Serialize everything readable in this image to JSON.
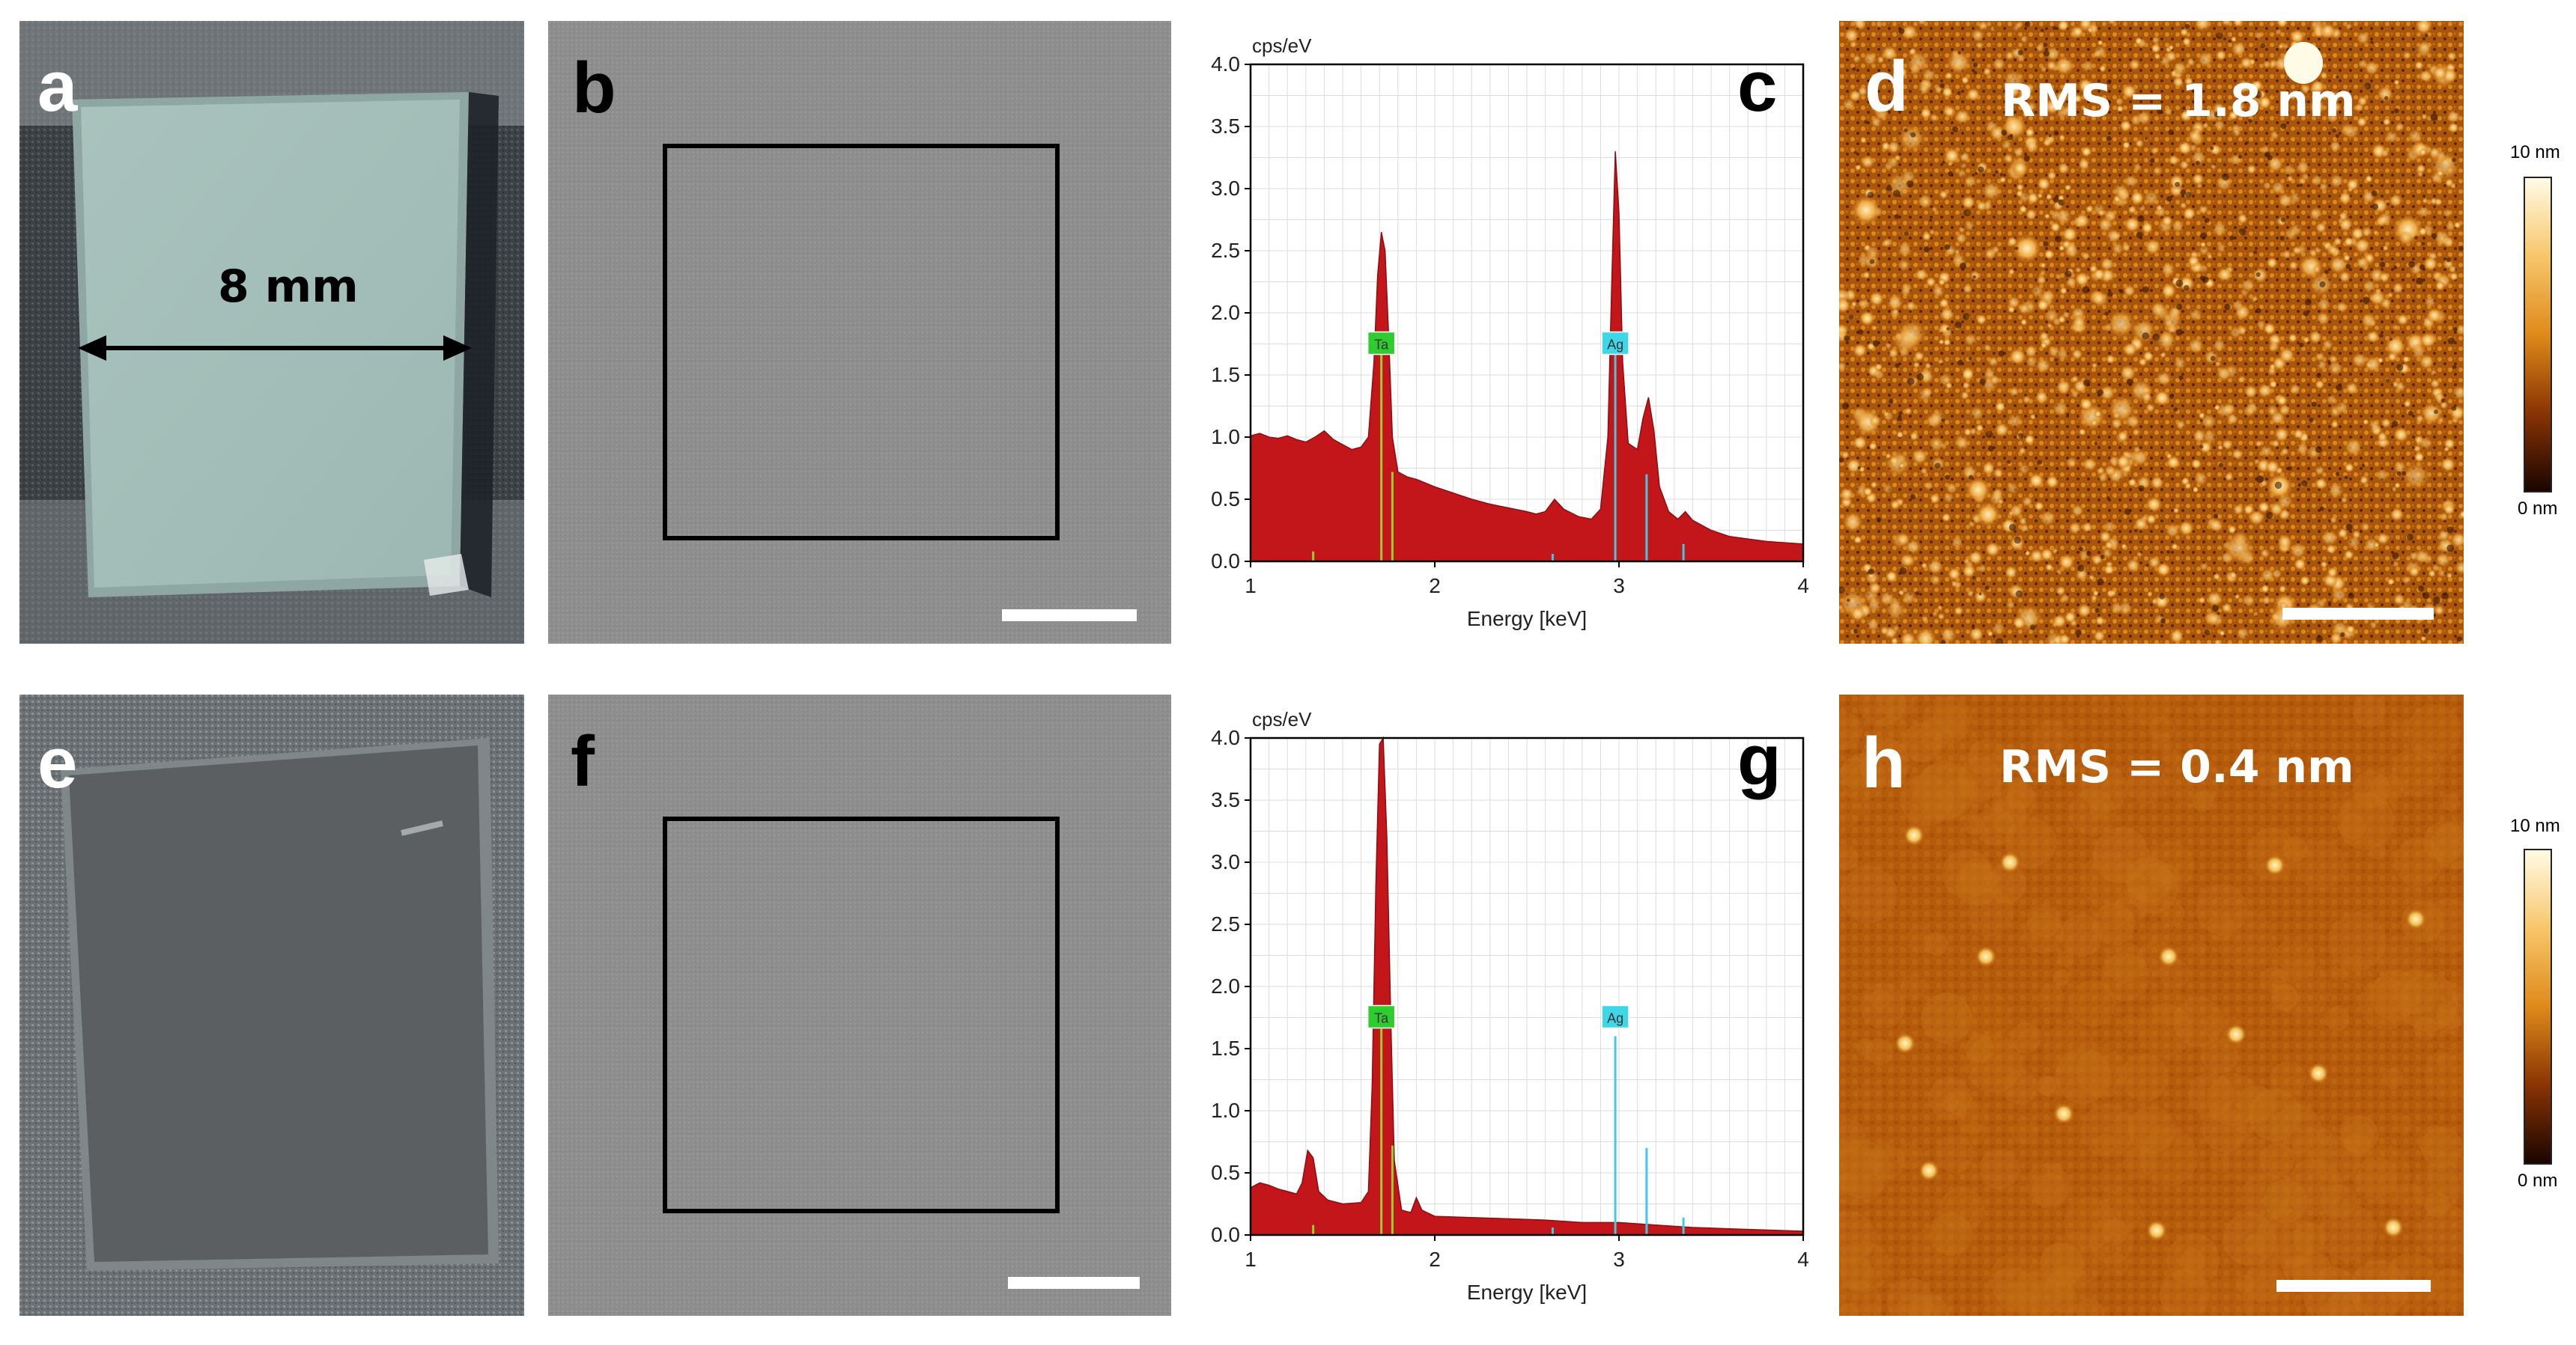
{
  "panels": {
    "a": {
      "label": "a",
      "dimension": "8 mm"
    },
    "b": {
      "label": "b"
    },
    "c": {
      "label": "c"
    },
    "d": {
      "label": "d",
      "rms": "RMS = 1.8 nm"
    },
    "e": {
      "label": "e"
    },
    "f": {
      "label": "f"
    },
    "g": {
      "label": "g"
    },
    "h": {
      "label": "h",
      "rms": "RMS = 0.4 nm"
    }
  },
  "colorbar": {
    "max_label": "10 nm",
    "min_label": "0 nm"
  },
  "colors": {
    "spectrum_fill": "#c2161b",
    "ta_tag": "#2ecc2e",
    "ag_tag": "#3fd6e6",
    "marker_ta": "#9acd32",
    "marker_ag": "#45c8e0"
  },
  "chart_data": [
    {
      "type": "area",
      "panel": "c",
      "ylabel": "cps/eV",
      "xlabel": "Energy [keV]",
      "xlim": [
        1,
        4
      ],
      "ylim": [
        0,
        4
      ],
      "x_ticks": [
        "1",
        "2",
        "3",
        "4"
      ],
      "y_ticks": [
        "0.0",
        "0.5",
        "1.0",
        "1.5",
        "2.0",
        "2.5",
        "3.0",
        "3.5",
        "4.0"
      ],
      "peak_tags": [
        {
          "name": "Ta",
          "x": 1.71,
          "y": 1.75
        },
        {
          "name": "Ag",
          "x": 2.98,
          "y": 1.75
        }
      ],
      "markers": [
        {
          "x": 1.34,
          "h": 0.08,
          "el": "Ta"
        },
        {
          "x": 1.71,
          "h": 1.75,
          "el": "Ta"
        },
        {
          "x": 1.77,
          "h": 0.72,
          "el": "Ta"
        },
        {
          "x": 2.64,
          "h": 0.06,
          "el": "Ag"
        },
        {
          "x": 2.98,
          "h": 1.75,
          "el": "Ag"
        },
        {
          "x": 3.15,
          "h": 0.7,
          "el": "Ag"
        },
        {
          "x": 3.35,
          "h": 0.14,
          "el": "Ag"
        }
      ],
      "spectrum": [
        [
          1.0,
          1.01
        ],
        [
          1.05,
          1.03
        ],
        [
          1.1,
          1.0
        ],
        [
          1.15,
          0.99
        ],
        [
          1.2,
          1.01
        ],
        [
          1.25,
          0.98
        ],
        [
          1.3,
          0.96
        ],
        [
          1.35,
          1.0
        ],
        [
          1.4,
          1.05
        ],
        [
          1.45,
          0.98
        ],
        [
          1.5,
          0.94
        ],
        [
          1.55,
          0.9
        ],
        [
          1.6,
          0.92
        ],
        [
          1.64,
          1.0
        ],
        [
          1.67,
          1.6
        ],
        [
          1.69,
          2.3
        ],
        [
          1.71,
          2.65
        ],
        [
          1.73,
          2.5
        ],
        [
          1.75,
          1.8
        ],
        [
          1.77,
          1.0
        ],
        [
          1.8,
          0.72
        ],
        [
          1.85,
          0.68
        ],
        [
          1.9,
          0.66
        ],
        [
          2.0,
          0.6
        ],
        [
          2.1,
          0.55
        ],
        [
          2.2,
          0.5
        ],
        [
          2.3,
          0.46
        ],
        [
          2.4,
          0.43
        ],
        [
          2.5,
          0.4
        ],
        [
          2.55,
          0.38
        ],
        [
          2.6,
          0.4
        ],
        [
          2.65,
          0.5
        ],
        [
          2.7,
          0.42
        ],
        [
          2.78,
          0.36
        ],
        [
          2.85,
          0.34
        ],
        [
          2.9,
          0.42
        ],
        [
          2.94,
          1.0
        ],
        [
          2.96,
          2.2
        ],
        [
          2.98,
          3.3
        ],
        [
          3.0,
          2.8
        ],
        [
          3.02,
          1.6
        ],
        [
          3.05,
          0.95
        ],
        [
          3.1,
          0.9
        ],
        [
          3.13,
          1.15
        ],
        [
          3.16,
          1.32
        ],
        [
          3.19,
          1.05
        ],
        [
          3.22,
          0.6
        ],
        [
          3.27,
          0.4
        ],
        [
          3.32,
          0.34
        ],
        [
          3.36,
          0.4
        ],
        [
          3.4,
          0.33
        ],
        [
          3.5,
          0.25
        ],
        [
          3.6,
          0.2
        ],
        [
          3.7,
          0.18
        ],
        [
          3.8,
          0.16
        ],
        [
          3.9,
          0.15
        ],
        [
          4.0,
          0.14
        ]
      ]
    },
    {
      "type": "area",
      "panel": "g",
      "ylabel": "cps/eV",
      "xlabel": "Energy [keV]",
      "xlim": [
        1,
        4
      ],
      "ylim": [
        0,
        4
      ],
      "x_ticks": [
        "1",
        "2",
        "3",
        "4"
      ],
      "y_ticks": [
        "0.0",
        "0.5",
        "1.0",
        "1.5",
        "2.0",
        "2.5",
        "3.0",
        "3.5",
        "4.0"
      ],
      "peak_tags": [
        {
          "name": "Ta",
          "x": 1.71,
          "y": 1.75
        },
        {
          "name": "Ag",
          "x": 2.98,
          "y": 1.75
        }
      ],
      "markers": [
        {
          "x": 1.34,
          "h": 0.08,
          "el": "Ta"
        },
        {
          "x": 1.71,
          "h": 1.75,
          "el": "Ta"
        },
        {
          "x": 1.77,
          "h": 0.72,
          "el": "Ta"
        },
        {
          "x": 2.64,
          "h": 0.06,
          "el": "Ag"
        },
        {
          "x": 2.98,
          "h": 1.6,
          "el": "Ag"
        },
        {
          "x": 3.15,
          "h": 0.7,
          "el": "Ag"
        },
        {
          "x": 3.35,
          "h": 0.14,
          "el": "Ag"
        }
      ],
      "spectrum": [
        [
          1.0,
          0.38
        ],
        [
          1.05,
          0.42
        ],
        [
          1.1,
          0.4
        ],
        [
          1.15,
          0.37
        ],
        [
          1.2,
          0.35
        ],
        [
          1.25,
          0.33
        ],
        [
          1.28,
          0.42
        ],
        [
          1.31,
          0.68
        ],
        [
          1.34,
          0.62
        ],
        [
          1.37,
          0.35
        ],
        [
          1.42,
          0.28
        ],
        [
          1.5,
          0.25
        ],
        [
          1.6,
          0.26
        ],
        [
          1.64,
          0.35
        ],
        [
          1.66,
          1.2
        ],
        [
          1.68,
          2.8
        ],
        [
          1.7,
          3.95
        ],
        [
          1.72,
          4.0
        ],
        [
          1.74,
          3.2
        ],
        [
          1.76,
          1.8
        ],
        [
          1.78,
          0.6
        ],
        [
          1.82,
          0.2
        ],
        [
          1.87,
          0.18
        ],
        [
          1.9,
          0.3
        ],
        [
          1.93,
          0.2
        ],
        [
          2.0,
          0.15
        ],
        [
          2.2,
          0.14
        ],
        [
          2.4,
          0.13
        ],
        [
          2.6,
          0.12
        ],
        [
          2.8,
          0.1
        ],
        [
          3.0,
          0.1
        ],
        [
          3.2,
          0.08
        ],
        [
          3.4,
          0.06
        ],
        [
          3.6,
          0.05
        ],
        [
          3.8,
          0.04
        ],
        [
          4.0,
          0.03
        ]
      ]
    }
  ]
}
